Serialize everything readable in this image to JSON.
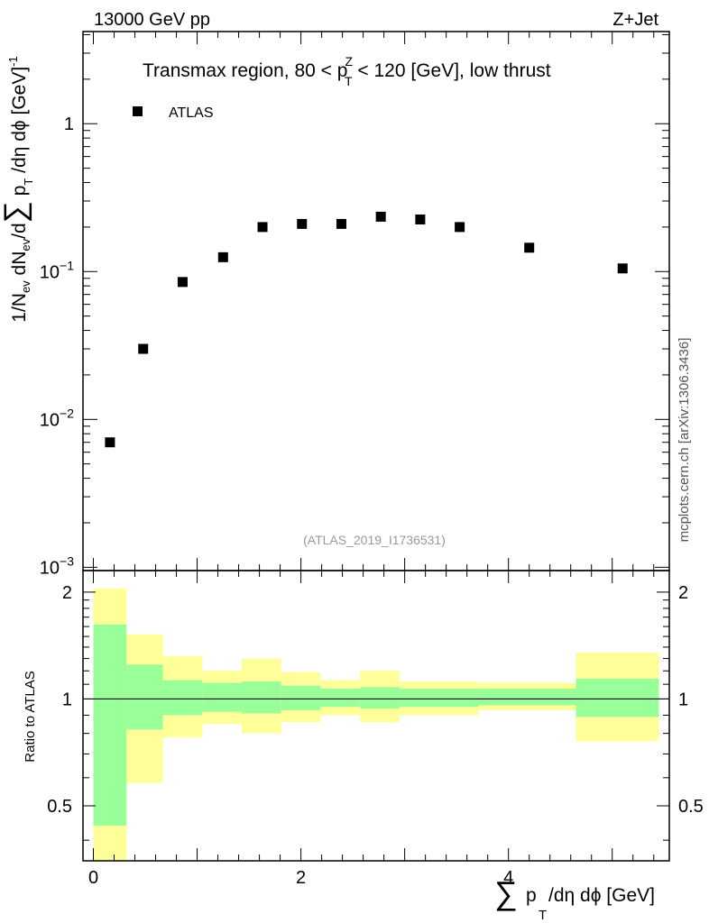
{
  "header": {
    "left": "13000 GeV pp",
    "right": "Z+Jet"
  },
  "side_label": "mcplots.cern.ch [arXiv:1306.3436]",
  "analysis_id": "(ATLAS_2019_I1736531)",
  "colors": {
    "band_outer": "#ffff99",
    "band_inner": "#99ff99",
    "marker": "#000000"
  },
  "chart_data": [
    {
      "type": "scatter",
      "title": "Transmax region, 80 < p_T^Z < 120 [GeV], low thrust",
      "ylabel": "1/N_ev dN_ev/d∑p_T/dη dϕ [GeV]^-1",
      "yscale": "log",
      "xlim": [
        -0.1,
        5.55
      ],
      "ylim": [
        0.00095,
        4.2
      ],
      "ytick_labels": [
        "10^-3",
        "10^-2",
        "10^-1",
        "1"
      ],
      "legend": {
        "entry": "ATLAS",
        "placement": "top-left"
      },
      "series": [
        {
          "name": "ATLAS",
          "x": [
            0.16,
            0.48,
            0.86,
            1.25,
            1.63,
            2.01,
            2.39,
            2.77,
            3.15,
            3.53,
            4.2,
            5.1
          ],
          "y": [
            0.007,
            0.03,
            0.085,
            0.125,
            0.2,
            0.21,
            0.21,
            0.235,
            0.225,
            0.2,
            0.145,
            0.105
          ]
        }
      ]
    },
    {
      "type": "area",
      "ylabel": "Ratio to ATLAS",
      "xlabel": "∑p_T/dη dϕ [GeV]",
      "xlim": [
        -0.1,
        5.55
      ],
      "ylim": [
        0.35,
        2.3
      ],
      "xtick_labels": [
        "0",
        "2",
        "4"
      ],
      "ytick_labels": [
        "0.5",
        "1",
        "2"
      ],
      "reference_line": 1,
      "bins": [
        {
          "lo": 0.0,
          "hi": 0.32,
          "inner": [
            0.44,
            1.62
          ],
          "outer": [
            0.0,
            2.05
          ]
        },
        {
          "lo": 0.32,
          "hi": 0.67,
          "inner": [
            0.82,
            1.25
          ],
          "outer": [
            0.58,
            1.52
          ]
        },
        {
          "lo": 0.67,
          "hi": 1.05,
          "inner": [
            0.9,
            1.13
          ],
          "outer": [
            0.78,
            1.32
          ]
        },
        {
          "lo": 1.05,
          "hi": 1.43,
          "inner": [
            0.92,
            1.11
          ],
          "outer": [
            0.85,
            1.2
          ]
        },
        {
          "lo": 1.43,
          "hi": 1.81,
          "inner": [
            0.91,
            1.12
          ],
          "outer": [
            0.8,
            1.3
          ]
        },
        {
          "lo": 1.81,
          "hi": 2.19,
          "inner": [
            0.93,
            1.09
          ],
          "outer": [
            0.86,
            1.19
          ]
        },
        {
          "lo": 2.19,
          "hi": 2.57,
          "inner": [
            0.95,
            1.07
          ],
          "outer": [
            0.9,
            1.13
          ]
        },
        {
          "lo": 2.57,
          "hi": 2.95,
          "inner": [
            0.94,
            1.08
          ],
          "outer": [
            0.86,
            1.2
          ]
        },
        {
          "lo": 2.95,
          "hi": 3.71,
          "inner": [
            0.95,
            1.07
          ],
          "outer": [
            0.9,
            1.12
          ]
        },
        {
          "lo": 3.71,
          "hi": 4.65,
          "inner": [
            0.96,
            1.07
          ],
          "outer": [
            0.93,
            1.11
          ]
        },
        {
          "lo": 4.65,
          "hi": 5.45,
          "inner": [
            0.89,
            1.14
          ],
          "outer": [
            0.76,
            1.35
          ]
        }
      ]
    }
  ]
}
